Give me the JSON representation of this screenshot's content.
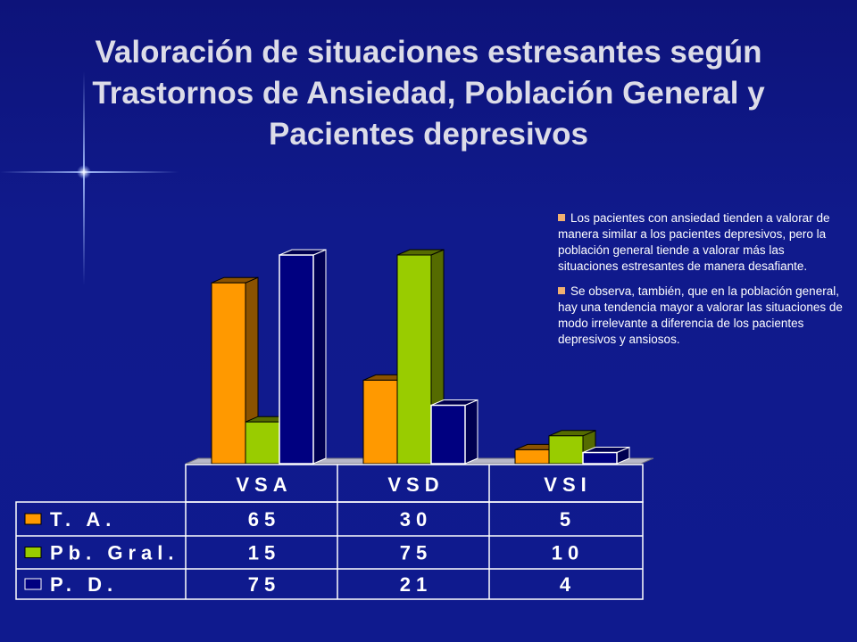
{
  "slide": {
    "title": "Valoración de situaciones estresantes según Trastornos de Ansiedad, Población General y Pacientes depresivos",
    "notes": [
      "Los pacientes con ansiedad tienden a valorar de manera similar a los pacientes depresivos, pero la población general tiende a valorar más las situaciones estresantes de manera desafiante.",
      "Se observa, también,  que en la población general, hay una tendencia mayor a valorar las situaciones de modo irrelevante a diferencia de los pacientes depresivos y ansiosos."
    ]
  },
  "colors": {
    "bullet": "#f0b070"
  },
  "chart_data": {
    "type": "bar",
    "categories": [
      "VSA",
      "VSD",
      "VSI"
    ],
    "series": [
      {
        "name": "T. A.",
        "values": [
          65,
          30,
          5
        ],
        "color": "#ff9900",
        "side_color": "#8a5200"
      },
      {
        "name": "Pb. Gral.",
        "values": [
          15,
          75,
          10
        ],
        "color": "#99cc00",
        "side_color": "#556b00"
      },
      {
        "name": "P. D.",
        "values": [
          75,
          21,
          4
        ],
        "color": "#000080",
        "side_color": "#000050"
      }
    ],
    "ylim": [
      0,
      75
    ],
    "grid": false,
    "legend": "data-table-left",
    "data_table": true
  }
}
